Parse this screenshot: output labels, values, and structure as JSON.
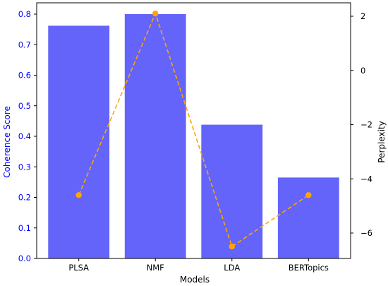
{
  "chart_data": {
    "type": "bar",
    "categories": [
      "PLSA",
      "NMF",
      "LDA",
      "BERTopics"
    ],
    "xlabel": "Models",
    "series": [
      {
        "name": "Coherence Score",
        "type": "bar",
        "axis": "left",
        "values": [
          0.762,
          0.8,
          0.438,
          0.265
        ],
        "color": "#6464fa"
      },
      {
        "name": "Perplexity",
        "type": "line",
        "axis": "right",
        "values": [
          -4.6,
          2.1,
          -6.5,
          -4.6
        ],
        "color": "#ffa500",
        "line_style": "dashed",
        "marker": "circle"
      }
    ],
    "left_axis": {
      "label": "Coherence Score",
      "ylim": [
        0,
        0.8
      ],
      "ticks": [
        "0.0",
        "0.1",
        "0.2",
        "0.3",
        "0.4",
        "0.5",
        "0.6",
        "0.7",
        "0.8"
      ],
      "color": "#0000ff"
    },
    "right_axis": {
      "label": "Perplexity",
      "ylim": [
        -6.8,
        2.4
      ],
      "ticks": [
        "2",
        "0",
        "−2",
        "−4",
        "−6"
      ],
      "color": "#000000"
    },
    "grid": false,
    "legend": "none"
  }
}
